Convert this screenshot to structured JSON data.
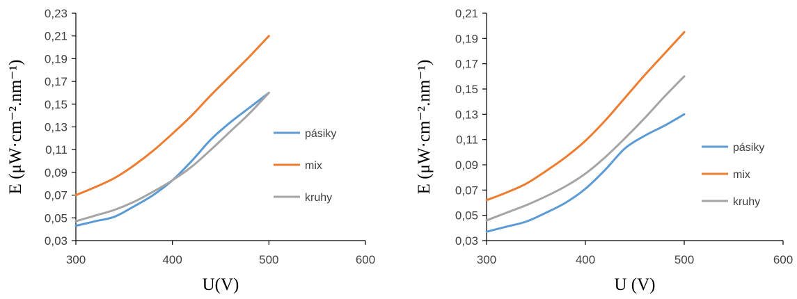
{
  "chart_data": [
    {
      "type": "line",
      "xlabel": "U(V)",
      "ylabel": "E (μW·cm⁻².nm⁻¹)",
      "xlim": [
        300,
        600
      ],
      "ylim": [
        0.03,
        0.23
      ],
      "xticks": [
        "300",
        "400",
        "500",
        "600"
      ],
      "yticks": [
        "0,03",
        "0,05",
        "0,07",
        "0,09",
        "0,11",
        "0,13",
        "0,15",
        "0,17",
        "0,19",
        "0,21",
        "0,23"
      ],
      "grid": false,
      "legend_position": "right",
      "series": [
        {
          "name": "pásiky",
          "color": "#5b9bd5",
          "x": [
            300,
            320,
            340,
            360,
            380,
            400,
            420,
            440,
            460,
            480,
            500
          ],
          "y": [
            0.043,
            0.047,
            0.051,
            0.06,
            0.07,
            0.083,
            0.1,
            0.119,
            0.134,
            0.147,
            0.16
          ]
        },
        {
          "name": "mix",
          "color": "#ed7d31",
          "x": [
            300,
            320,
            340,
            360,
            380,
            400,
            420,
            440,
            460,
            480,
            500
          ],
          "y": [
            0.07,
            0.077,
            0.085,
            0.096,
            0.109,
            0.124,
            0.14,
            0.158,
            0.175,
            0.192,
            0.21
          ]
        },
        {
          "name": "kruhy",
          "color": "#a5a5a5",
          "x": [
            300,
            320,
            340,
            360,
            380,
            400,
            420,
            440,
            460,
            480,
            500
          ],
          "y": [
            0.047,
            0.052,
            0.057,
            0.064,
            0.073,
            0.083,
            0.095,
            0.11,
            0.126,
            0.142,
            0.16
          ]
        }
      ]
    },
    {
      "type": "line",
      "xlabel": "U (V)",
      "ylabel": "E (μW·cm⁻².nm⁻¹)",
      "xlim": [
        300,
        600
      ],
      "ylim": [
        0.03,
        0.21
      ],
      "xticks": [
        "300",
        "400",
        "500",
        "600"
      ],
      "yticks": [
        "0,03",
        "0,05",
        "0,07",
        "0,09",
        "0,11",
        "0,13",
        "0,15",
        "0,17",
        "0,19",
        "0,21"
      ],
      "grid": false,
      "legend_position": "right",
      "series": [
        {
          "name": "pásiky",
          "color": "#5b9bd5",
          "x": [
            300,
            320,
            340,
            360,
            380,
            400,
            420,
            440,
            460,
            480,
            500
          ],
          "y": [
            0.037,
            0.041,
            0.045,
            0.052,
            0.06,
            0.071,
            0.086,
            0.103,
            0.113,
            0.121,
            0.13
          ]
        },
        {
          "name": "mix",
          "color": "#ed7d31",
          "x": [
            300,
            320,
            340,
            360,
            380,
            400,
            420,
            440,
            460,
            480,
            500
          ],
          "y": [
            0.062,
            0.068,
            0.075,
            0.085,
            0.096,
            0.109,
            0.125,
            0.143,
            0.161,
            0.178,
            0.195
          ]
        },
        {
          "name": "kruhy",
          "color": "#a5a5a5",
          "x": [
            300,
            320,
            340,
            360,
            380,
            400,
            420,
            440,
            460,
            480,
            500
          ],
          "y": [
            0.046,
            0.052,
            0.058,
            0.065,
            0.073,
            0.083,
            0.096,
            0.111,
            0.127,
            0.144,
            0.16
          ]
        }
      ]
    }
  ]
}
